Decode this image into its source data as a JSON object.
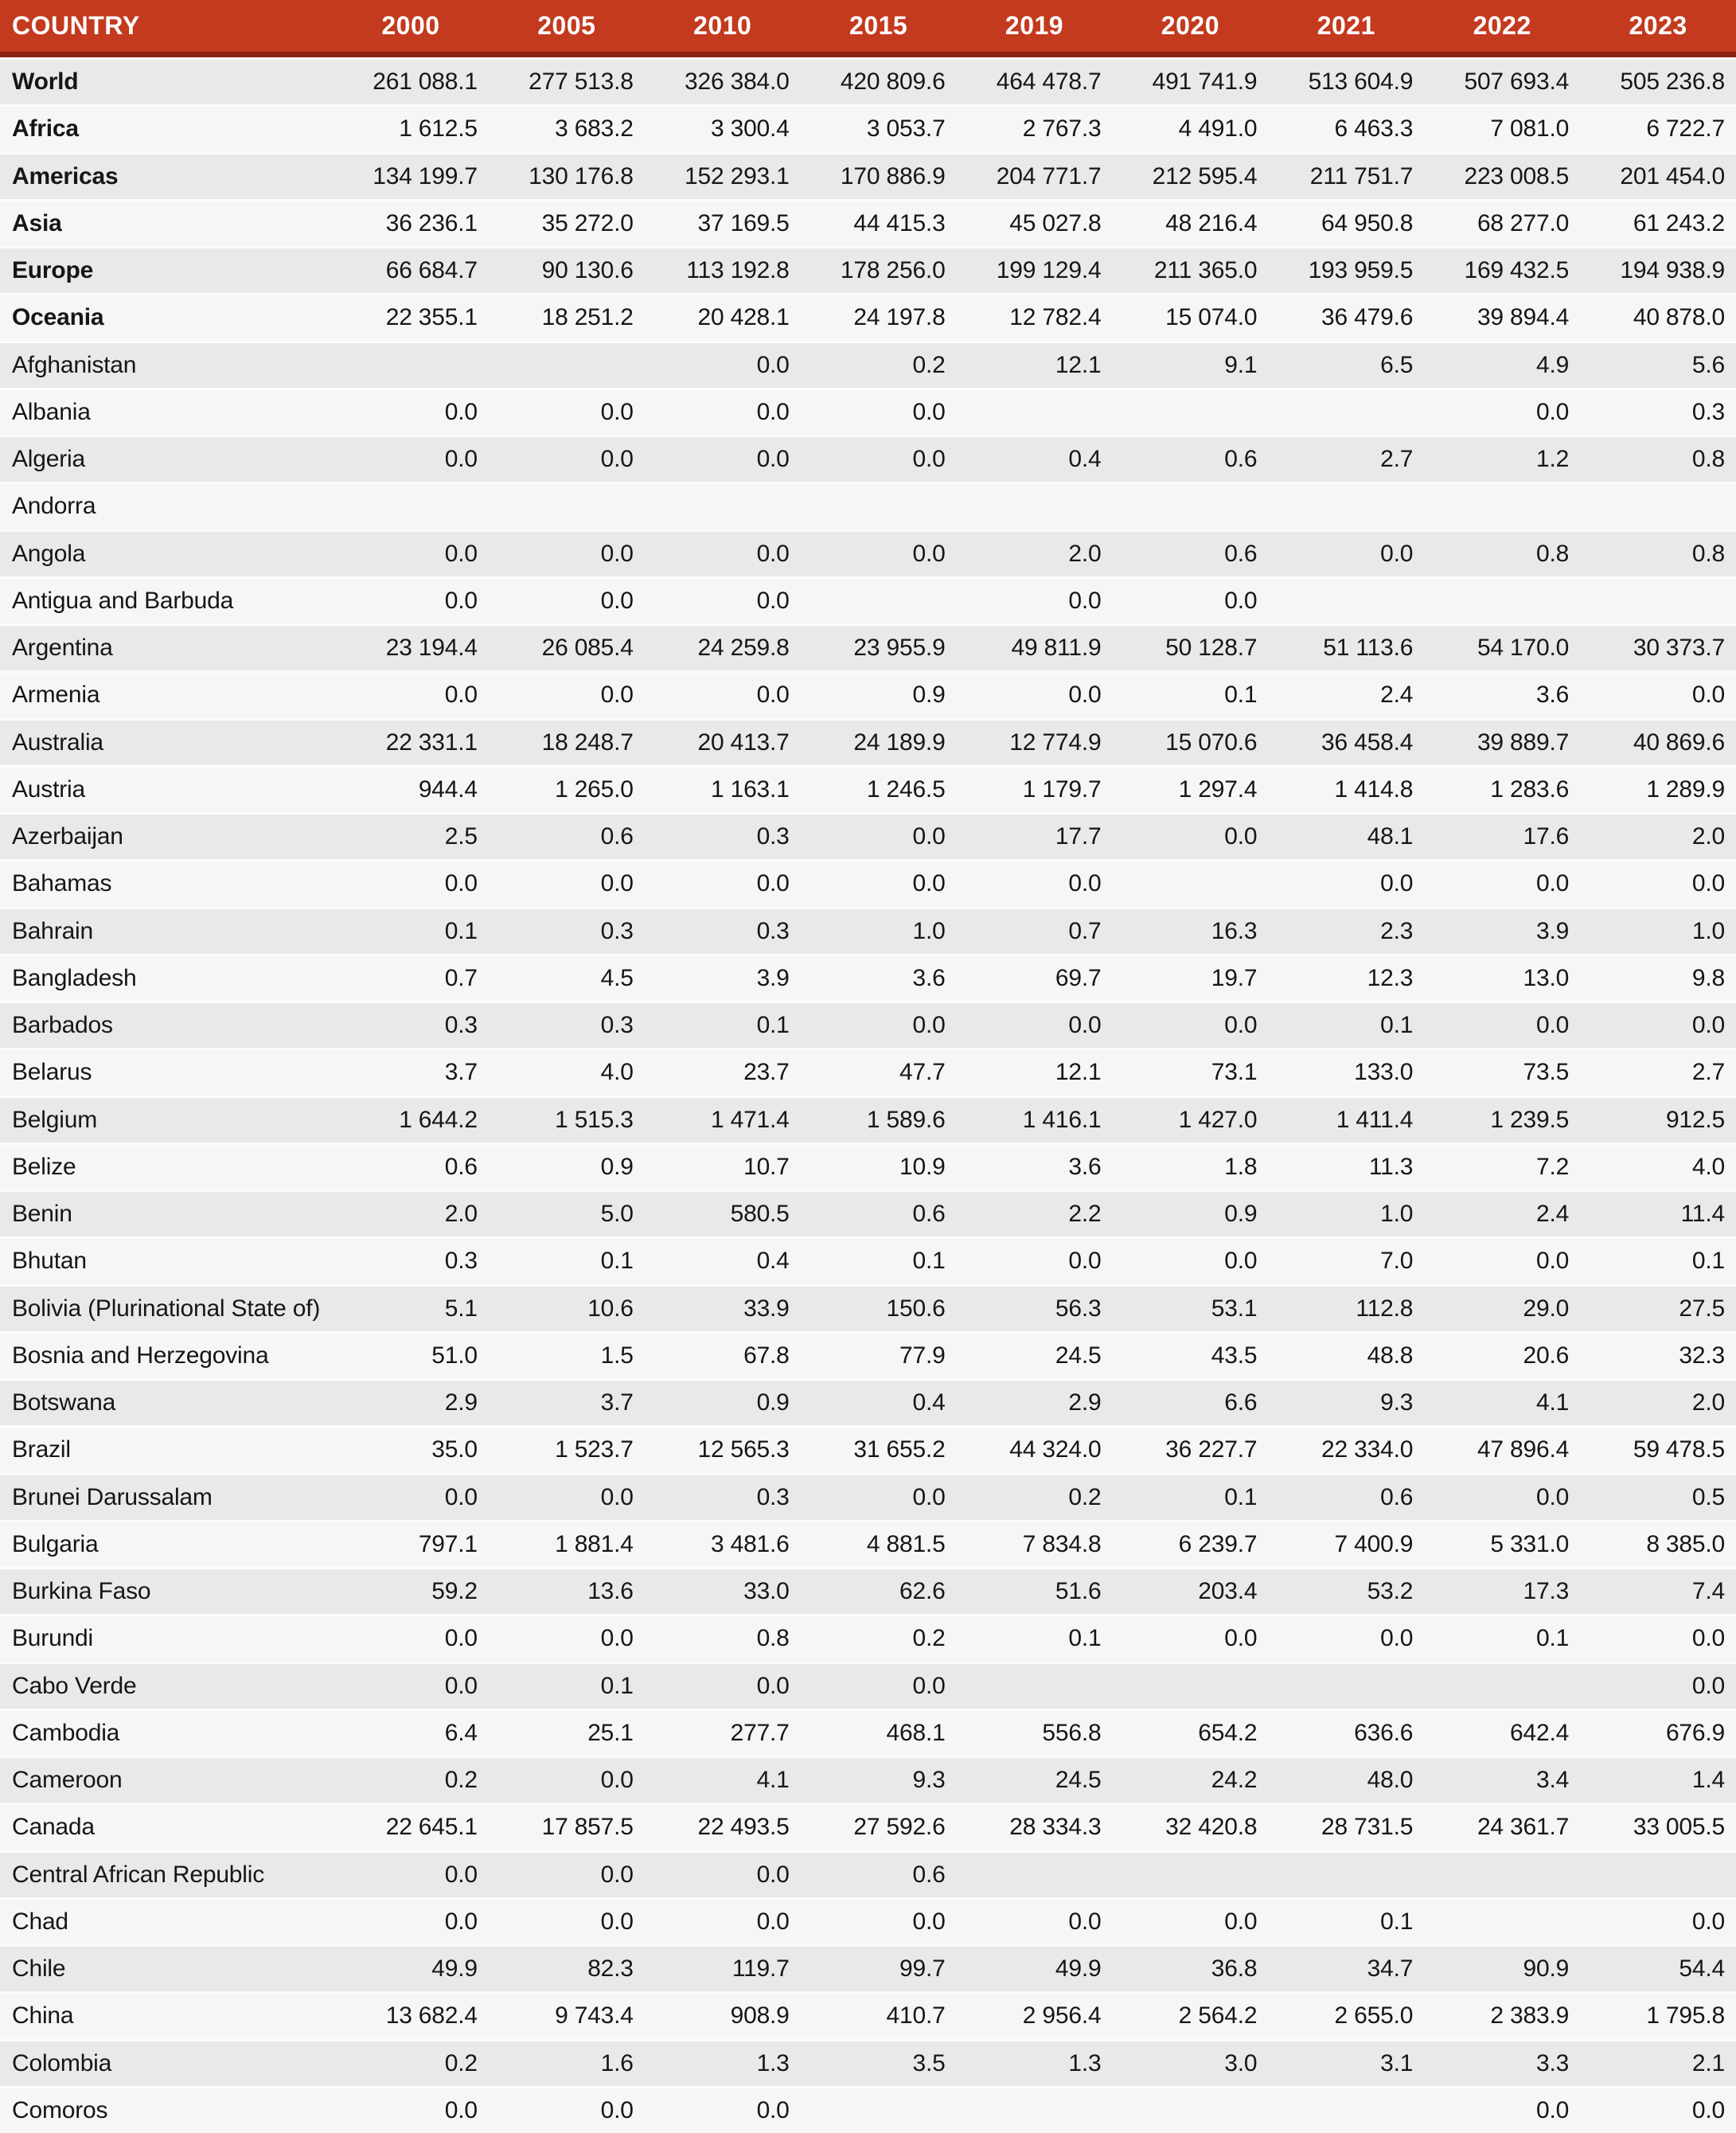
{
  "colors": {
    "header_background": "#c43a1e",
    "header_bottom_border": "#8d2112",
    "row_stripe_gray": "#e9e9e9",
    "row_stripe_light": "#f6f6f6",
    "header_text": "#ffffff",
    "body_text": "#161616"
  },
  "table": {
    "header": {
      "country_label": "COUNTRY",
      "years": [
        "2000",
        "2005",
        "2010",
        "2015",
        "2019",
        "2020",
        "2021",
        "2022",
        "2023"
      ]
    },
    "rows": [
      {
        "name": "World",
        "bold": true,
        "values": [
          "261 088.1",
          "277 513.8",
          "326 384.0",
          "420 809.6",
          "464 478.7",
          "491 741.9",
          "513 604.9",
          "507 693.4",
          "505 236.8"
        ]
      },
      {
        "name": "Africa",
        "bold": true,
        "values": [
          "1 612.5",
          "3 683.2",
          "3 300.4",
          "3 053.7",
          "2 767.3",
          "4 491.0",
          "6 463.3",
          "7 081.0",
          "6 722.7"
        ]
      },
      {
        "name": "Americas",
        "bold": true,
        "values": [
          "134 199.7",
          "130 176.8",
          "152 293.1",
          "170 886.9",
          "204 771.7",
          "212 595.4",
          "211 751.7",
          "223 008.5",
          "201 454.0"
        ]
      },
      {
        "name": "Asia",
        "bold": true,
        "values": [
          "36 236.1",
          "35 272.0",
          "37 169.5",
          "44 415.3",
          "45 027.8",
          "48 216.4",
          "64 950.8",
          "68 277.0",
          "61 243.2"
        ]
      },
      {
        "name": "Europe",
        "bold": true,
        "values": [
          "66 684.7",
          "90 130.6",
          "113 192.8",
          "178 256.0",
          "199 129.4",
          "211 365.0",
          "193 959.5",
          "169 432.5",
          "194 938.9"
        ]
      },
      {
        "name": "Oceania",
        "bold": true,
        "values": [
          "22 355.1",
          "18 251.2",
          "20 428.1",
          "24 197.8",
          "12 782.4",
          "15 074.0",
          "36 479.6",
          "39 894.4",
          "40 878.0"
        ]
      },
      {
        "name": "Afghanistan",
        "bold": false,
        "values": [
          "",
          "",
          "0.0",
          "0.2",
          "12.1",
          "9.1",
          "6.5",
          "4.9",
          "5.6"
        ]
      },
      {
        "name": "Albania",
        "bold": false,
        "values": [
          "0.0",
          "0.0",
          "0.0",
          "0.0",
          "",
          "",
          "",
          "0.0",
          "0.3"
        ]
      },
      {
        "name": "Algeria",
        "bold": false,
        "values": [
          "0.0",
          "0.0",
          "0.0",
          "0.0",
          "0.4",
          "0.6",
          "2.7",
          "1.2",
          "0.8"
        ]
      },
      {
        "name": "Andorra",
        "bold": false,
        "values": [
          "",
          "",
          "",
          "",
          "",
          "",
          "",
          "",
          ""
        ]
      },
      {
        "name": "Angola",
        "bold": false,
        "values": [
          "0.0",
          "0.0",
          "0.0",
          "0.0",
          "2.0",
          "0.6",
          "0.0",
          "0.8",
          "0.8"
        ]
      },
      {
        "name": "Antigua and Barbuda",
        "bold": false,
        "values": [
          "0.0",
          "0.0",
          "0.0",
          "",
          "0.0",
          "0.0",
          "",
          "",
          ""
        ]
      },
      {
        "name": "Argentina",
        "bold": false,
        "values": [
          "23 194.4",
          "26 085.4",
          "24 259.8",
          "23 955.9",
          "49 811.9",
          "50 128.7",
          "51 113.6",
          "54 170.0",
          "30 373.7"
        ]
      },
      {
        "name": "Armenia",
        "bold": false,
        "values": [
          "0.0",
          "0.0",
          "0.0",
          "0.9",
          "0.0",
          "0.1",
          "2.4",
          "3.6",
          "0.0"
        ]
      },
      {
        "name": "Australia",
        "bold": false,
        "values": [
          "22 331.1",
          "18 248.7",
          "20 413.7",
          "24 189.9",
          "12 774.9",
          "15 070.6",
          "36 458.4",
          "39 889.7",
          "40 869.6"
        ]
      },
      {
        "name": "Austria",
        "bold": false,
        "values": [
          "944.4",
          "1 265.0",
          "1 163.1",
          "1 246.5",
          "1 179.7",
          "1 297.4",
          "1 414.8",
          "1 283.6",
          "1 289.9"
        ]
      },
      {
        "name": "Azerbaijan",
        "bold": false,
        "values": [
          "2.5",
          "0.6",
          "0.3",
          "0.0",
          "17.7",
          "0.0",
          "48.1",
          "17.6",
          "2.0"
        ]
      },
      {
        "name": "Bahamas",
        "bold": false,
        "values": [
          "0.0",
          "0.0",
          "0.0",
          "0.0",
          "0.0",
          "",
          "0.0",
          "0.0",
          "0.0"
        ]
      },
      {
        "name": "Bahrain",
        "bold": false,
        "values": [
          "0.1",
          "0.3",
          "0.3",
          "1.0",
          "0.7",
          "16.3",
          "2.3",
          "3.9",
          "1.0"
        ]
      },
      {
        "name": "Bangladesh",
        "bold": false,
        "values": [
          "0.7",
          "4.5",
          "3.9",
          "3.6",
          "69.7",
          "19.7",
          "12.3",
          "13.0",
          "9.8"
        ]
      },
      {
        "name": "Barbados",
        "bold": false,
        "values": [
          "0.3",
          "0.3",
          "0.1",
          "0.0",
          "0.0",
          "0.0",
          "0.1",
          "0.0",
          "0.0"
        ]
      },
      {
        "name": "Belarus",
        "bold": false,
        "values": [
          "3.7",
          "4.0",
          "23.7",
          "47.7",
          "12.1",
          "73.1",
          "133.0",
          "73.5",
          "2.7"
        ]
      },
      {
        "name": "Belgium",
        "bold": false,
        "values": [
          "1 644.2",
          "1 515.3",
          "1 471.4",
          "1 589.6",
          "1 416.1",
          "1 427.0",
          "1 411.4",
          "1 239.5",
          "912.5"
        ]
      },
      {
        "name": "Belize",
        "bold": false,
        "values": [
          "0.6",
          "0.9",
          "10.7",
          "10.9",
          "3.6",
          "1.8",
          "11.3",
          "7.2",
          "4.0"
        ]
      },
      {
        "name": "Benin",
        "bold": false,
        "values": [
          "2.0",
          "5.0",
          "580.5",
          "0.6",
          "2.2",
          "0.9",
          "1.0",
          "2.4",
          "11.4"
        ]
      },
      {
        "name": "Bhutan",
        "bold": false,
        "values": [
          "0.3",
          "0.1",
          "0.4",
          "0.1",
          "0.0",
          "0.0",
          "7.0",
          "0.0",
          "0.1"
        ]
      },
      {
        "name": "Bolivia (Plurinational State of)",
        "bold": false,
        "values": [
          "5.1",
          "10.6",
          "33.9",
          "150.6",
          "56.3",
          "53.1",
          "112.8",
          "29.0",
          "27.5"
        ]
      },
      {
        "name": "Bosnia and Herzegovina",
        "bold": false,
        "values": [
          "51.0",
          "1.5",
          "67.8",
          "77.9",
          "24.5",
          "43.5",
          "48.8",
          "20.6",
          "32.3"
        ]
      },
      {
        "name": "Botswana",
        "bold": false,
        "values": [
          "2.9",
          "3.7",
          "0.9",
          "0.4",
          "2.9",
          "6.6",
          "9.3",
          "4.1",
          "2.0"
        ]
      },
      {
        "name": "Brazil",
        "bold": false,
        "values": [
          "35.0",
          "1 523.7",
          "12 565.3",
          "31 655.2",
          "44 324.0",
          "36 227.7",
          "22 334.0",
          "47 896.4",
          "59 478.5"
        ]
      },
      {
        "name": "Brunei Darussalam",
        "bold": false,
        "values": [
          "0.0",
          "0.0",
          "0.3",
          "0.0",
          "0.2",
          "0.1",
          "0.6",
          "0.0",
          "0.5"
        ]
      },
      {
        "name": "Bulgaria",
        "bold": false,
        "values": [
          "797.1",
          "1 881.4",
          "3 481.6",
          "4 881.5",
          "7 834.8",
          "6 239.7",
          "7 400.9",
          "5 331.0",
          "8 385.0"
        ]
      },
      {
        "name": "Burkina Faso",
        "bold": false,
        "values": [
          "59.2",
          "13.6",
          "33.0",
          "62.6",
          "51.6",
          "203.4",
          "53.2",
          "17.3",
          "7.4"
        ]
      },
      {
        "name": "Burundi",
        "bold": false,
        "values": [
          "0.0",
          "0.0",
          "0.8",
          "0.2",
          "0.1",
          "0.0",
          "0.0",
          "0.1",
          "0.0"
        ]
      },
      {
        "name": "Cabo Verde",
        "bold": false,
        "values": [
          "0.0",
          "0.1",
          "0.0",
          "0.0",
          "",
          "",
          "",
          "",
          "0.0"
        ]
      },
      {
        "name": "Cambodia",
        "bold": false,
        "values": [
          "6.4",
          "25.1",
          "277.7",
          "468.1",
          "556.8",
          "654.2",
          "636.6",
          "642.4",
          "676.9"
        ]
      },
      {
        "name": "Cameroon",
        "bold": false,
        "values": [
          "0.2",
          "0.0",
          "4.1",
          "9.3",
          "24.5",
          "24.2",
          "48.0",
          "3.4",
          "1.4"
        ]
      },
      {
        "name": "Canada",
        "bold": false,
        "values": [
          "22 645.1",
          "17 857.5",
          "22 493.5",
          "27 592.6",
          "28 334.3",
          "32 420.8",
          "28 731.5",
          "24 361.7",
          "33 005.5"
        ]
      },
      {
        "name": "Central African Republic",
        "bold": false,
        "values": [
          "0.0",
          "0.0",
          "0.0",
          "0.6",
          "",
          "",
          "",
          "",
          ""
        ]
      },
      {
        "name": "Chad",
        "bold": false,
        "values": [
          "0.0",
          "0.0",
          "0.0",
          "0.0",
          "0.0",
          "0.0",
          "0.1",
          "",
          "0.0"
        ]
      },
      {
        "name": "Chile",
        "bold": false,
        "values": [
          "49.9",
          "82.3",
          "119.7",
          "99.7",
          "49.9",
          "36.8",
          "34.7",
          "90.9",
          "54.4"
        ]
      },
      {
        "name": "China",
        "bold": false,
        "values": [
          "13 682.4",
          "9 743.4",
          "908.9",
          "410.7",
          "2 956.4",
          "2 564.2",
          "2 655.0",
          "2 383.9",
          "1 795.8"
        ]
      },
      {
        "name": "Colombia",
        "bold": false,
        "values": [
          "0.2",
          "1.6",
          "1.3",
          "3.5",
          "1.3",
          "3.0",
          "3.1",
          "3.3",
          "2.1"
        ]
      },
      {
        "name": "Comoros",
        "bold": false,
        "values": [
          "0.0",
          "0.0",
          "0.0",
          "",
          "",
          "",
          "",
          "0.0",
          "0.0"
        ]
      }
    ]
  }
}
